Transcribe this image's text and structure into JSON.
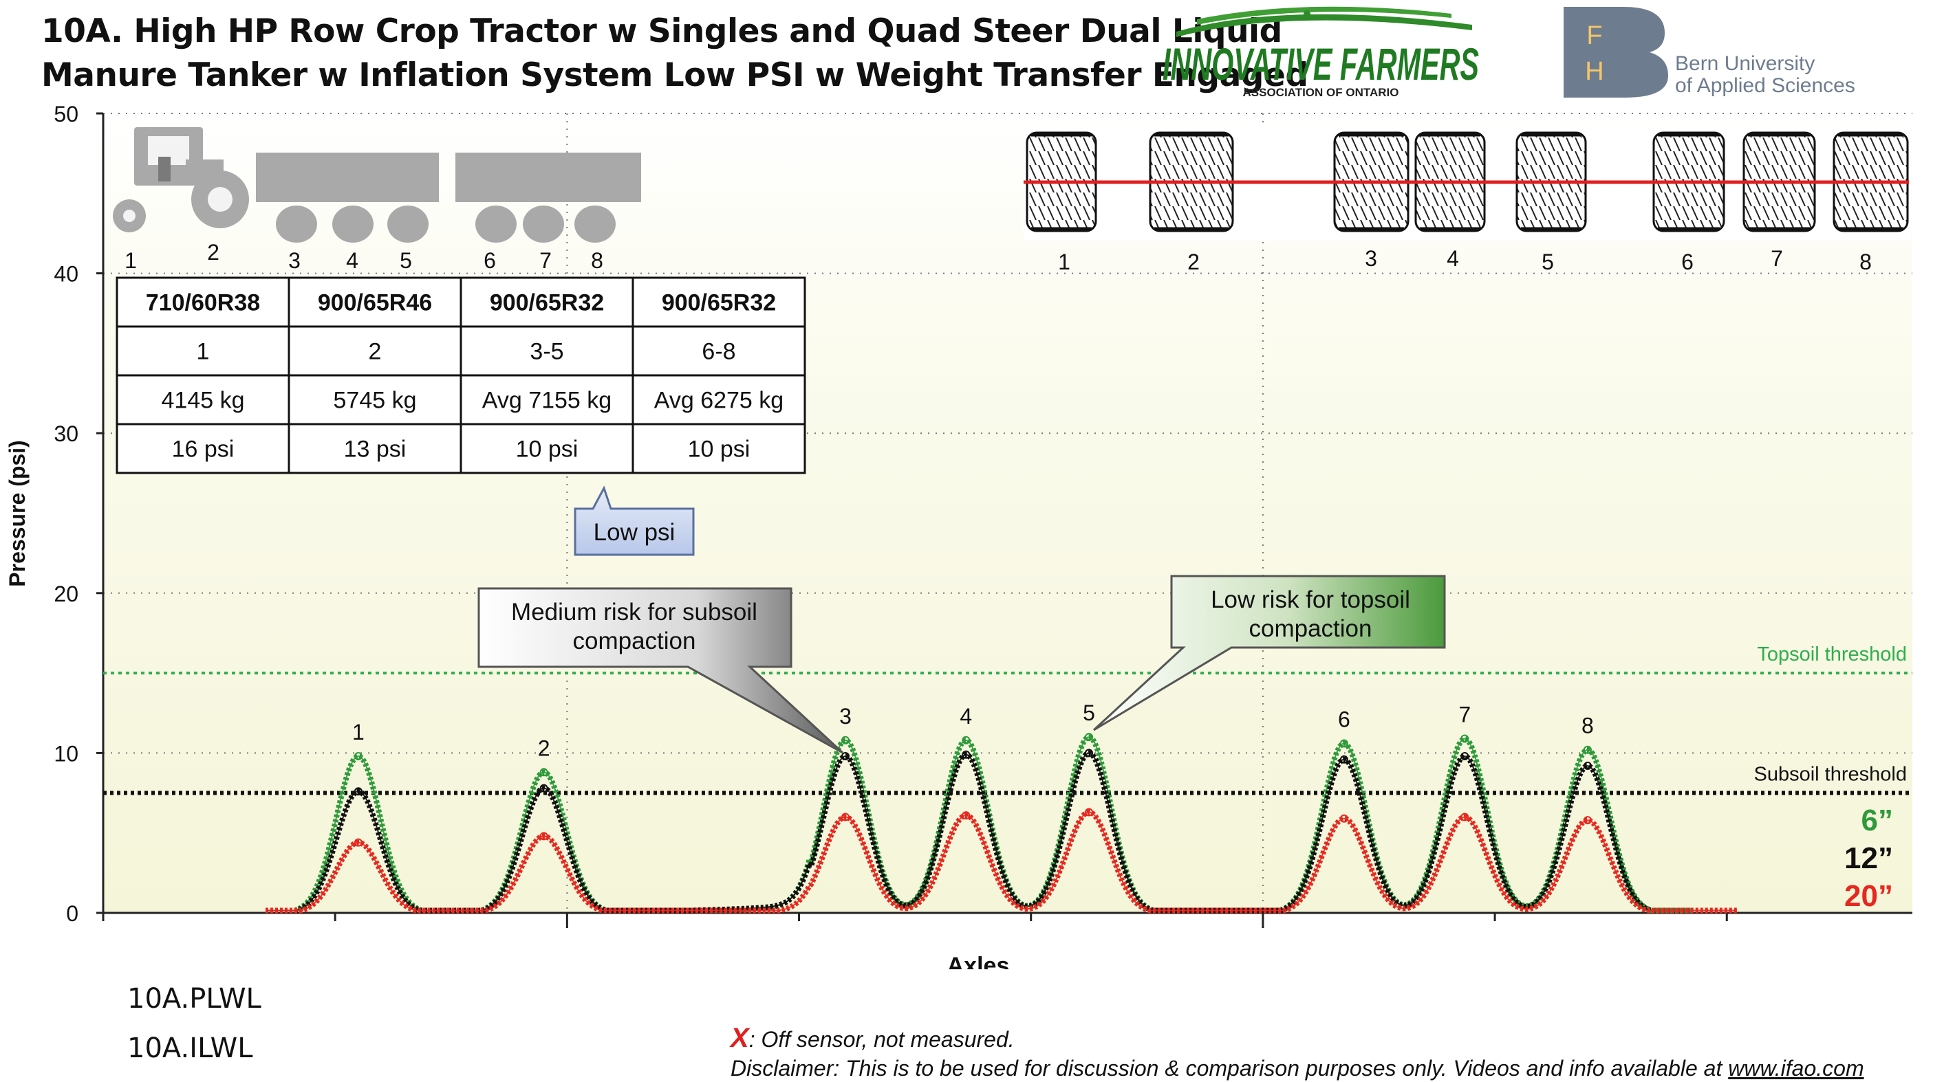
{
  "title": {
    "line1": "10A. High HP Row Crop Tractor w Singles and Quad Steer Dual Liquid",
    "line2": "Manure Tanker w Inflation System Low PSI w Weight Transfer Engaged"
  },
  "logos": {
    "innovative": {
      "main": "INNOVATIVE FARMERS",
      "sub": "ASSOCIATION OF ONTARIO"
    },
    "bern": {
      "letters": [
        "F",
        "H"
      ],
      "line1": "Bern University",
      "line2": "of Applied Sciences"
    }
  },
  "colors": {
    "plot_bg": "#f7f7df",
    "depth_6": "#2e9a3a",
    "depth_12": "#111111",
    "depth_20": "#e6281e",
    "topsoil": "#2eae4e",
    "subsoil": "#111111",
    "wheel_line": "#e02020"
  },
  "tire_table": {
    "rows": [
      [
        "710/60R38",
        "900/65R46",
        "900/65R32",
        "900/65R32"
      ],
      [
        "1",
        "2",
        "3-5",
        "6-8"
      ],
      [
        "4145 kg",
        "5745 kg",
        "Avg 7155 kg",
        "Avg 6275 kg"
      ],
      [
        "16 psi",
        "13 psi",
        "10 psi",
        "10 psi"
      ]
    ]
  },
  "machine_numbers": [
    "1",
    "2",
    "3",
    "4",
    "5",
    "6",
    "7",
    "8"
  ],
  "wheel_numbers": [
    "1",
    "2",
    "3",
    "4",
    "5",
    "6",
    "7",
    "8"
  ],
  "callouts": {
    "low_psi": "Low psi",
    "medium_risk": [
      "Medium risk for subsoil",
      "compaction"
    ],
    "low_risk": [
      "Low risk for topsoil",
      "compaction"
    ]
  },
  "footer": {
    "codes": [
      "10A.PLWL",
      "10A.ILWL"
    ],
    "off_sensor_mark": "X",
    "off_sensor_text": ": Off sensor, not measured.",
    "disclaimer": "Disclaimer: This is to be used for discussion & comparison purposes only. Videos and info available at",
    "link": "www.ifao.com"
  },
  "chart_data": {
    "type": "line",
    "xlabel": "Axles",
    "ylabel": "Pressure (psi)",
    "ylim": [
      0,
      50
    ],
    "yticks": [
      0,
      10,
      20,
      30,
      40,
      50
    ],
    "xlim": [
      0,
      7.8
    ],
    "grid": true,
    "thresholds": [
      {
        "name": "Topsoil threshold",
        "value": 15
      },
      {
        "name": "Subsoil threshold",
        "value": 7.5
      }
    ],
    "peak_labels": [
      "1",
      "2",
      "3",
      "4",
      "5",
      "6",
      "7",
      "8"
    ],
    "peak_x": [
      1.1,
      1.9,
      3.2,
      3.72,
      4.25,
      5.35,
      5.87,
      6.4
    ],
    "series": [
      {
        "name": "6”",
        "peaks": [
          9.8,
          8.8,
          10.8,
          10.8,
          11.0,
          10.6,
          10.9,
          10.2
        ],
        "x_start": 0.7,
        "x_end": 6.85
      },
      {
        "name": "12”",
        "peaks": [
          7.6,
          7.8,
          9.8,
          9.9,
          10.0,
          9.6,
          9.8,
          9.2
        ],
        "x_start": 0.7,
        "x_end": 6.85
      },
      {
        "name": "20”",
        "peaks": [
          4.4,
          4.8,
          6.0,
          6.1,
          6.3,
          5.9,
          6.0,
          5.8
        ],
        "x_start": 0.7,
        "x_end": 7.05
      }
    ]
  }
}
